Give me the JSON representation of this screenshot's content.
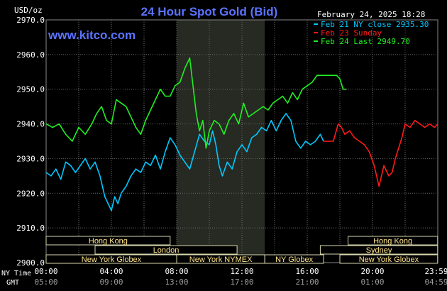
{
  "header": {
    "title": "24 Hour Spot Gold (Bid)",
    "website": "www.kitco.com",
    "timestamp": "February 24, 2025 18:28",
    "y_unit": "USD/oz"
  },
  "legend": [
    {
      "label": "Feb 21 NY close 2935.30",
      "color": "#00c8ff"
    },
    {
      "label": "Feb 23 Sunday",
      "color": "#ff1a1a"
    },
    {
      "label": "Feb 24 Last 2949.70",
      "color": "#22ee22"
    }
  ],
  "axes": {
    "row1_label": "NY Time",
    "row2_label": "GMT",
    "ny_ticks": [
      "00:00",
      "04:00",
      "08:00",
      "12:00",
      "16:00",
      "20:00",
      "23:59"
    ],
    "gmt_ticks": [
      "05:00",
      "09:00",
      "13:00",
      "17:00",
      "21:00",
      "01:00",
      "04:59"
    ]
  },
  "sessions": [
    {
      "label": "Hong Kong",
      "start": 0,
      "end": 7.6,
      "row": 0
    },
    {
      "label": "Hong Kong",
      "start": 18.5,
      "end": 23.99,
      "row": 0
    },
    {
      "label": "London",
      "start": 3,
      "end": 11.7,
      "row": 1
    },
    {
      "label": "Sydney",
      "start": 16.8,
      "end": 23.99,
      "row": 1
    },
    {
      "label": "New York Globex",
      "start": 0,
      "end": 8.0,
      "row": 2
    },
    {
      "label": "New York NYMEX",
      "start": 8.0,
      "end": 13.4,
      "row": 2
    },
    {
      "label": "NY Globex",
      "start": 13.4,
      "end": 17.0,
      "row": 2
    },
    {
      "label": "New York Globex",
      "start": 18.0,
      "end": 23.99,
      "row": 2
    }
  ],
  "colors": {
    "background": "#000000",
    "grid": "#6a6a6a",
    "nymex_band": "#262a22",
    "axis_text": "#ffffff",
    "title": "#5b73ff",
    "website": "#5b73ff",
    "session_box_bg": "#000000",
    "session_box_border": "#d8d8b0",
    "session_text": "#ffe58a"
  },
  "chart_data": {
    "type": "line",
    "title": "24 Hour Spot Gold (Bid)",
    "ylabel": "USD/oz",
    "xlabel": "",
    "x_unit": "hours (NY time)",
    "xlim": [
      0,
      24
    ],
    "ylim": [
      2900,
      2970
    ],
    "yticks": [
      2900,
      2910,
      2920,
      2930,
      2940,
      2950,
      2960,
      2970
    ],
    "highlight_band": [
      8.0,
      13.4
    ],
    "grid": true,
    "legend_position": "top-right",
    "series": [
      {
        "name": "Feb 21 NY close 2935.30",
        "color": "#00c8ff",
        "x": [
          0,
          0.3,
          0.6,
          0.9,
          1.2,
          1.5,
          1.8,
          2.1,
          2.4,
          2.7,
          3.0,
          3.3,
          3.6,
          3.9,
          4.0,
          4.2,
          4.4,
          4.6,
          4.9,
          5.2,
          5.5,
          5.8,
          6.1,
          6.4,
          6.7,
          7.0,
          7.3,
          7.6,
          7.9,
          8.2,
          8.5,
          8.8,
          9.1,
          9.4,
          9.7,
          10.0,
          10.2,
          10.4,
          10.6,
          10.8,
          11.1,
          11.4,
          11.7,
          12.0,
          12.3,
          12.6,
          12.9,
          13.2,
          13.5,
          13.8,
          14.1,
          14.4,
          14.7,
          15.0,
          15.3,
          15.6,
          15.9,
          16.2,
          16.5,
          16.8,
          17.0
        ],
        "y": [
          2926,
          2925,
          2927,
          2924,
          2929,
          2928,
          2926,
          2928,
          2930,
          2927,
          2929,
          2925,
          2919,
          2916,
          2915,
          2919,
          2917,
          2920,
          2922,
          2925,
          2927,
          2926,
          2929,
          2928,
          2931,
          2927,
          2932,
          2936,
          2934,
          2931,
          2929,
          2927,
          2932,
          2937,
          2935,
          2934,
          2938,
          2934,
          2928,
          2925,
          2929,
          2927,
          2932,
          2934,
          2932,
          2936,
          2937,
          2939,
          2938,
          2941,
          2938,
          2941,
          2943,
          2941,
          2935,
          2933,
          2935,
          2934,
          2935,
          2937,
          2935
        ]
      },
      {
        "name": "Feb 23 Sunday",
        "color": "#ff1a1a",
        "x": [
          17.0,
          17.6,
          17.9,
          18.1,
          18.3,
          18.6,
          18.9,
          19.2,
          19.5,
          19.8,
          20.1,
          20.4,
          20.7,
          21.0,
          21.2,
          21.4,
          21.6,
          21.8,
          22.0,
          22.3,
          22.6,
          22.9,
          23.2,
          23.5,
          23.8,
          24.0
        ],
        "y": [
          2935,
          2935,
          2940,
          2939,
          2937,
          2938,
          2936,
          2935,
          2934,
          2932,
          2928,
          2922,
          2928,
          2925,
          2926,
          2930,
          2933,
          2936,
          2940,
          2939,
          2941,
          2940,
          2939,
          2940,
          2939,
          2940
        ]
      },
      {
        "name": "Feb 24 Last 2949.70",
        "color": "#22ee22",
        "x": [
          0,
          0.4,
          0.8,
          1.2,
          1.6,
          2.0,
          2.4,
          2.8,
          3.1,
          3.4,
          3.7,
          4.0,
          4.3,
          4.6,
          4.9,
          5.2,
          5.5,
          5.8,
          6.1,
          6.4,
          6.7,
          7.0,
          7.3,
          7.6,
          7.9,
          8.2,
          8.5,
          8.8,
          9.0,
          9.2,
          9.4,
          9.6,
          9.8,
          10.0,
          10.3,
          10.6,
          10.9,
          11.2,
          11.5,
          11.8,
          12.1,
          12.4,
          12.7,
          13.0,
          13.3,
          13.6,
          13.9,
          14.2,
          14.5,
          14.8,
          15.1,
          15.4,
          15.7,
          16.0,
          16.3,
          16.6,
          16.9,
          17.2,
          17.5,
          17.8,
          18.0,
          18.2,
          18.4
        ],
        "y": [
          2940,
          2939,
          2940,
          2937,
          2935,
          2939,
          2937,
          2940,
          2943,
          2945,
          2941,
          2940,
          2947,
          2946,
          2945,
          2942,
          2939,
          2937,
          2941,
          2944,
          2947,
          2950,
          2948,
          2948,
          2951,
          2952,
          2956,
          2959,
          2951,
          2943,
          2938,
          2941,
          2933,
          2938,
          2941,
          2940,
          2937,
          2941,
          2943,
          2940,
          2946,
          2942,
          2943,
          2944,
          2945,
          2944,
          2946,
          2947,
          2948,
          2946,
          2949,
          2947,
          2950,
          2951,
          2952,
          2954,
          2954,
          2954,
          2954,
          2954,
          2953,
          2950,
          2950
        ]
      }
    ]
  }
}
